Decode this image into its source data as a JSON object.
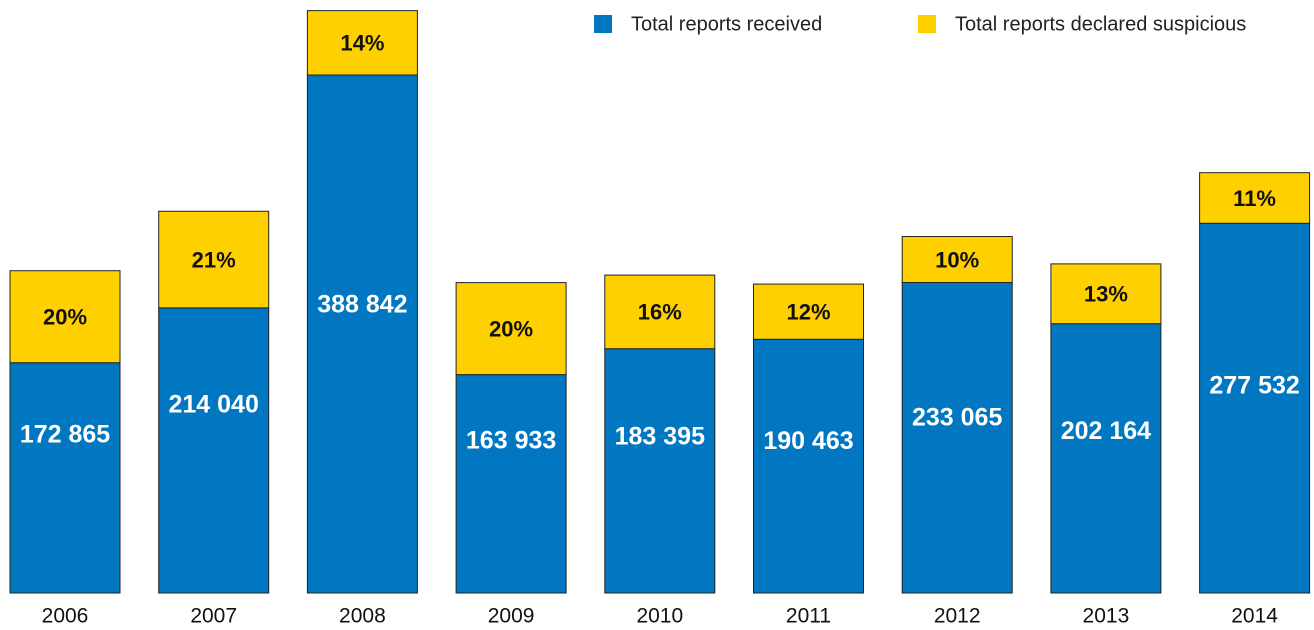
{
  "chart_data": {
    "type": "stacked_bar",
    "categories": [
      "2006",
      "2007",
      "2008",
      "2009",
      "2010",
      "2011",
      "2012",
      "2013",
      "2014"
    ],
    "series": [
      {
        "name": "Total reports received",
        "color": "#0077c0",
        "values": [
          172865,
          214040,
          388842,
          163933,
          183395,
          190463,
          233065,
          202164,
          277532
        ],
        "value_labels": [
          "172 865",
          "214 040",
          "388 842",
          "163 933",
          "183 395",
          "190 463",
          "233 065",
          "202 164",
          "277 532"
        ]
      },
      {
        "name": "Total reports declared suspicious",
        "color": "#ffd000",
        "values": [
          20,
          21,
          14,
          20,
          16,
          12,
          10,
          13,
          11
        ],
        "value_labels": [
          "20%",
          "21%",
          "14%",
          "20%",
          "16%",
          "12%",
          "10%",
          "13%",
          "11%"
        ]
      }
    ],
    "legend": "top-right"
  }
}
